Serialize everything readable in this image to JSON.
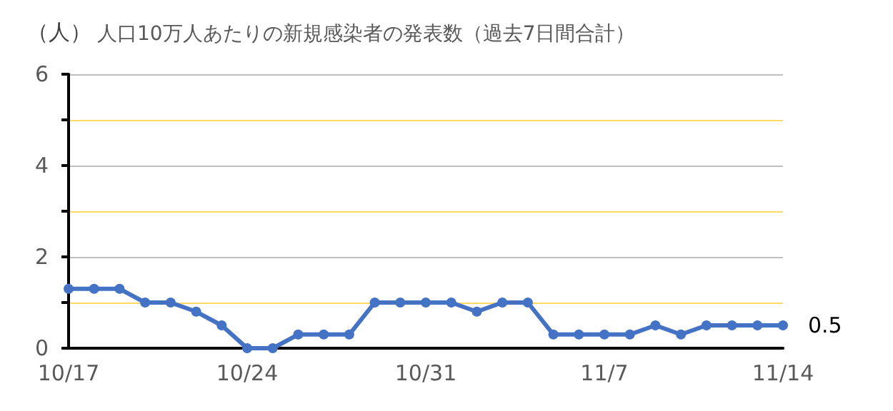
{
  "chart_data": {
    "type": "line",
    "title": "人口10万人あたりの新規感染者の発表数（過去7日間合計）",
    "ylabel": "（人）",
    "categories": [
      "10/17",
      null,
      null,
      null,
      null,
      null,
      null,
      "10/24",
      null,
      null,
      null,
      null,
      null,
      null,
      "10/31",
      null,
      null,
      null,
      null,
      null,
      null,
      "11/7",
      null,
      null,
      null,
      null,
      null,
      null,
      "11/14"
    ],
    "series": [
      {
        "color": "#4472c4",
        "values": [
          1.3,
          1.3,
          1.3,
          1.0,
          1.0,
          0.8,
          0.5,
          0,
          0,
          0.3,
          0.3,
          0.3,
          1.0,
          1.0,
          1.0,
          1.0,
          0.8,
          1.0,
          1.0,
          0.3,
          0.3,
          0.3,
          0.3,
          0.5,
          0.3,
          0.5,
          0.5,
          0.5,
          0.5
        ],
        "value_labels": [
          null,
          null,
          null,
          null,
          null,
          null,
          null,
          null,
          null,
          null,
          null,
          null,
          null,
          null,
          null,
          null,
          null,
          null,
          null,
          null,
          null,
          null,
          null,
          null,
          null,
          null,
          null,
          null,
          "0.5"
        ]
      }
    ],
    "ylim": [
      0,
      6
    ],
    "yticks": [
      0,
      {
        "value": 1,
        "label": null
      },
      2,
      {
        "value": 3,
        "label": null
      },
      4,
      {
        "value": 5,
        "label": null
      },
      6
    ],
    "grid": "y",
    "marker": "circle",
    "line_style": "solid"
  }
}
